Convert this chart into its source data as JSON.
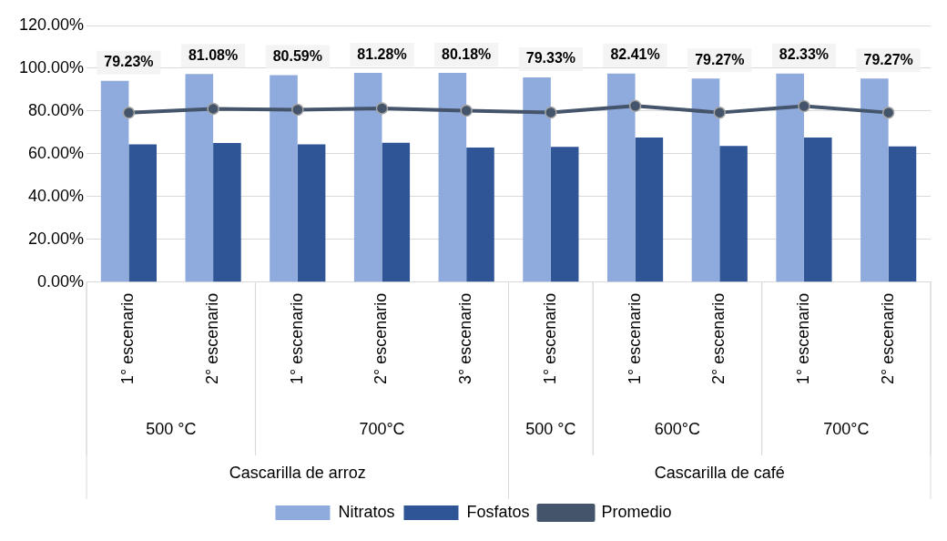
{
  "chart_data": {
    "type": "bar",
    "categories": [
      "1° escenario",
      "2° escenario",
      "1° escenario",
      "2° escenario",
      "3° escenario",
      "1° escenario",
      "1° escenario",
      "2° escenario",
      "1° escenario",
      "2° escenario"
    ],
    "series": [
      {
        "name": "Nitratos",
        "color": "#8faadc",
        "values": [
          94.1,
          97.3,
          96.8,
          97.8,
          97.8,
          95.7,
          97.5,
          95.2,
          97.5,
          95.2
        ]
      },
      {
        "name": "Fosfatos",
        "color": "#2f5597",
        "values": [
          64.4,
          65.1,
          64.4,
          65.2,
          62.9,
          63.2,
          67.6,
          63.7,
          67.6,
          63.5
        ]
      },
      {
        "name": "Promedio",
        "type": "line",
        "color": "#44546a",
        "marker": "circle",
        "values": [
          79.23,
          81.08,
          80.59,
          81.28,
          80.18,
          79.33,
          82.41,
          79.27,
          82.33,
          79.27
        ],
        "value_labels": [
          "79.23%",
          "81.08%",
          "80.59%",
          "81.28%",
          "80.18%",
          "79.33%",
          "82.41%",
          "79.27%",
          "82.33%",
          "79.27%"
        ]
      }
    ],
    "ylim": [
      0,
      120
    ],
    "yticks": [
      {
        "value": 0,
        "label": "0.00%"
      },
      {
        "value": 20,
        "label": "20.00%"
      },
      {
        "value": 40,
        "label": "40.00%"
      },
      {
        "value": 60,
        "label": "60.00%"
      },
      {
        "value": 80,
        "label": "80.00%"
      },
      {
        "value": 100,
        "label": "100.00%"
      },
      {
        "value": 120,
        "label": "120.00%"
      }
    ],
    "annotations": [
      "500 °C",
      "700°C",
      "500 °C",
      "600°C",
      "700°C",
      "Cascarilla de arroz",
      "Cascarilla de café"
    ],
    "grid": "y",
    "legend": "bottom"
  }
}
